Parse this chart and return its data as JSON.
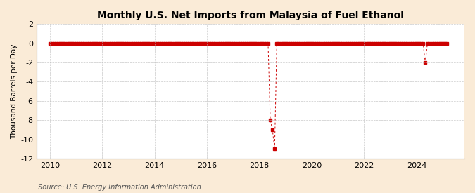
{
  "title": "Monthly U.S. Net Imports from Malaysia of Fuel Ethanol",
  "ylabel": "Thousand Barrels per Day",
  "source": "Source: U.S. Energy Information Administration",
  "ylim": [
    -12,
    2
  ],
  "yticks": [
    2,
    0,
    -2,
    -4,
    -6,
    -8,
    -10,
    -12
  ],
  "xlim_start": 2009.5,
  "xlim_end": 2025.83,
  "xticks": [
    2010,
    2012,
    2014,
    2016,
    2018,
    2020,
    2022,
    2024
  ],
  "bg_color": "#faebd7",
  "plot_bg_color": "#ffffff",
  "grid_color": "#bbbbbb",
  "marker_color": "#cc0000",
  "data_points": [
    [
      2010.0,
      0
    ],
    [
      2010.083,
      0
    ],
    [
      2010.167,
      0
    ],
    [
      2010.25,
      0
    ],
    [
      2010.333,
      0
    ],
    [
      2010.417,
      0
    ],
    [
      2010.5,
      0
    ],
    [
      2010.583,
      0
    ],
    [
      2010.667,
      0
    ],
    [
      2010.75,
      0
    ],
    [
      2010.833,
      0
    ],
    [
      2010.917,
      0
    ],
    [
      2011.0,
      0
    ],
    [
      2011.083,
      0
    ],
    [
      2011.167,
      0
    ],
    [
      2011.25,
      0
    ],
    [
      2011.333,
      0
    ],
    [
      2011.417,
      0
    ],
    [
      2011.5,
      0
    ],
    [
      2011.583,
      0
    ],
    [
      2011.667,
      0
    ],
    [
      2011.75,
      0
    ],
    [
      2011.833,
      0
    ],
    [
      2011.917,
      0
    ],
    [
      2012.0,
      0
    ],
    [
      2012.083,
      0
    ],
    [
      2012.167,
      0
    ],
    [
      2012.25,
      0
    ],
    [
      2012.333,
      0
    ],
    [
      2012.417,
      0
    ],
    [
      2012.5,
      0
    ],
    [
      2012.583,
      0
    ],
    [
      2012.667,
      0
    ],
    [
      2012.75,
      0
    ],
    [
      2012.833,
      0
    ],
    [
      2012.917,
      0
    ],
    [
      2013.0,
      0
    ],
    [
      2013.083,
      0
    ],
    [
      2013.167,
      0
    ],
    [
      2013.25,
      0
    ],
    [
      2013.333,
      0
    ],
    [
      2013.417,
      0
    ],
    [
      2013.5,
      0
    ],
    [
      2013.583,
      0
    ],
    [
      2013.667,
      0
    ],
    [
      2013.75,
      0
    ],
    [
      2013.833,
      0
    ],
    [
      2013.917,
      0
    ],
    [
      2014.0,
      0
    ],
    [
      2014.083,
      0
    ],
    [
      2014.167,
      0
    ],
    [
      2014.25,
      0
    ],
    [
      2014.333,
      0
    ],
    [
      2014.417,
      0
    ],
    [
      2014.5,
      0
    ],
    [
      2014.583,
      0
    ],
    [
      2014.667,
      0
    ],
    [
      2014.75,
      0
    ],
    [
      2014.833,
      0
    ],
    [
      2014.917,
      0
    ],
    [
      2015.0,
      0
    ],
    [
      2015.083,
      0
    ],
    [
      2015.167,
      0
    ],
    [
      2015.25,
      0
    ],
    [
      2015.333,
      0
    ],
    [
      2015.417,
      0
    ],
    [
      2015.5,
      0
    ],
    [
      2015.583,
      0
    ],
    [
      2015.667,
      0
    ],
    [
      2015.75,
      0
    ],
    [
      2015.833,
      0
    ],
    [
      2015.917,
      0
    ],
    [
      2016.0,
      0
    ],
    [
      2016.083,
      0
    ],
    [
      2016.167,
      0
    ],
    [
      2016.25,
      0
    ],
    [
      2016.333,
      0
    ],
    [
      2016.417,
      0
    ],
    [
      2016.5,
      0
    ],
    [
      2016.583,
      0
    ],
    [
      2016.667,
      0
    ],
    [
      2016.75,
      0
    ],
    [
      2016.833,
      0
    ],
    [
      2016.917,
      0
    ],
    [
      2017.0,
      0
    ],
    [
      2017.083,
      0
    ],
    [
      2017.167,
      0
    ],
    [
      2017.25,
      0
    ],
    [
      2017.333,
      0
    ],
    [
      2017.417,
      0
    ],
    [
      2017.5,
      0
    ],
    [
      2017.583,
      0
    ],
    [
      2017.667,
      0
    ],
    [
      2017.75,
      0
    ],
    [
      2017.833,
      0
    ],
    [
      2017.917,
      0
    ],
    [
      2018.0,
      0
    ],
    [
      2018.083,
      0
    ],
    [
      2018.167,
      0
    ],
    [
      2018.25,
      0
    ],
    [
      2018.333,
      0
    ],
    [
      2018.417,
      -8
    ],
    [
      2018.5,
      -9
    ],
    [
      2018.583,
      -11
    ],
    [
      2018.667,
      0
    ],
    [
      2018.75,
      0
    ],
    [
      2018.833,
      0
    ],
    [
      2018.917,
      0
    ],
    [
      2019.0,
      0
    ],
    [
      2019.083,
      0
    ],
    [
      2019.167,
      0
    ],
    [
      2019.25,
      0
    ],
    [
      2019.333,
      0
    ],
    [
      2019.417,
      0
    ],
    [
      2019.5,
      0
    ],
    [
      2019.583,
      0
    ],
    [
      2019.667,
      0
    ],
    [
      2019.75,
      0
    ],
    [
      2019.833,
      0
    ],
    [
      2019.917,
      0
    ],
    [
      2020.0,
      0
    ],
    [
      2020.083,
      0
    ],
    [
      2020.167,
      0
    ],
    [
      2020.25,
      0
    ],
    [
      2020.333,
      0
    ],
    [
      2020.417,
      0
    ],
    [
      2020.5,
      0
    ],
    [
      2020.583,
      0
    ],
    [
      2020.667,
      0
    ],
    [
      2020.75,
      0
    ],
    [
      2020.833,
      0
    ],
    [
      2020.917,
      0
    ],
    [
      2021.0,
      0
    ],
    [
      2021.083,
      0
    ],
    [
      2021.167,
      0
    ],
    [
      2021.25,
      0
    ],
    [
      2021.333,
      0
    ],
    [
      2021.417,
      0
    ],
    [
      2021.5,
      0
    ],
    [
      2021.583,
      0
    ],
    [
      2021.667,
      0
    ],
    [
      2021.75,
      0
    ],
    [
      2021.833,
      0
    ],
    [
      2021.917,
      0
    ],
    [
      2022.0,
      0
    ],
    [
      2022.083,
      0
    ],
    [
      2022.167,
      0
    ],
    [
      2022.25,
      0
    ],
    [
      2022.333,
      0
    ],
    [
      2022.417,
      0
    ],
    [
      2022.5,
      0
    ],
    [
      2022.583,
      0
    ],
    [
      2022.667,
      0
    ],
    [
      2022.75,
      0
    ],
    [
      2022.833,
      0
    ],
    [
      2022.917,
      0
    ],
    [
      2023.0,
      0
    ],
    [
      2023.083,
      0
    ],
    [
      2023.167,
      0
    ],
    [
      2023.25,
      0
    ],
    [
      2023.333,
      0
    ],
    [
      2023.417,
      0
    ],
    [
      2023.5,
      0
    ],
    [
      2023.583,
      0
    ],
    [
      2023.667,
      0
    ],
    [
      2023.75,
      0
    ],
    [
      2023.833,
      0
    ],
    [
      2023.917,
      0
    ],
    [
      2024.0,
      0
    ],
    [
      2024.083,
      0
    ],
    [
      2024.167,
      0
    ],
    [
      2024.25,
      0
    ],
    [
      2024.333,
      -2
    ],
    [
      2024.417,
      0
    ],
    [
      2024.5,
      0
    ],
    [
      2024.583,
      0
    ],
    [
      2024.667,
      0
    ],
    [
      2024.75,
      0
    ],
    [
      2024.833,
      0
    ],
    [
      2024.917,
      0
    ],
    [
      2025.0,
      0
    ],
    [
      2025.083,
      0
    ],
    [
      2025.167,
      0
    ]
  ]
}
